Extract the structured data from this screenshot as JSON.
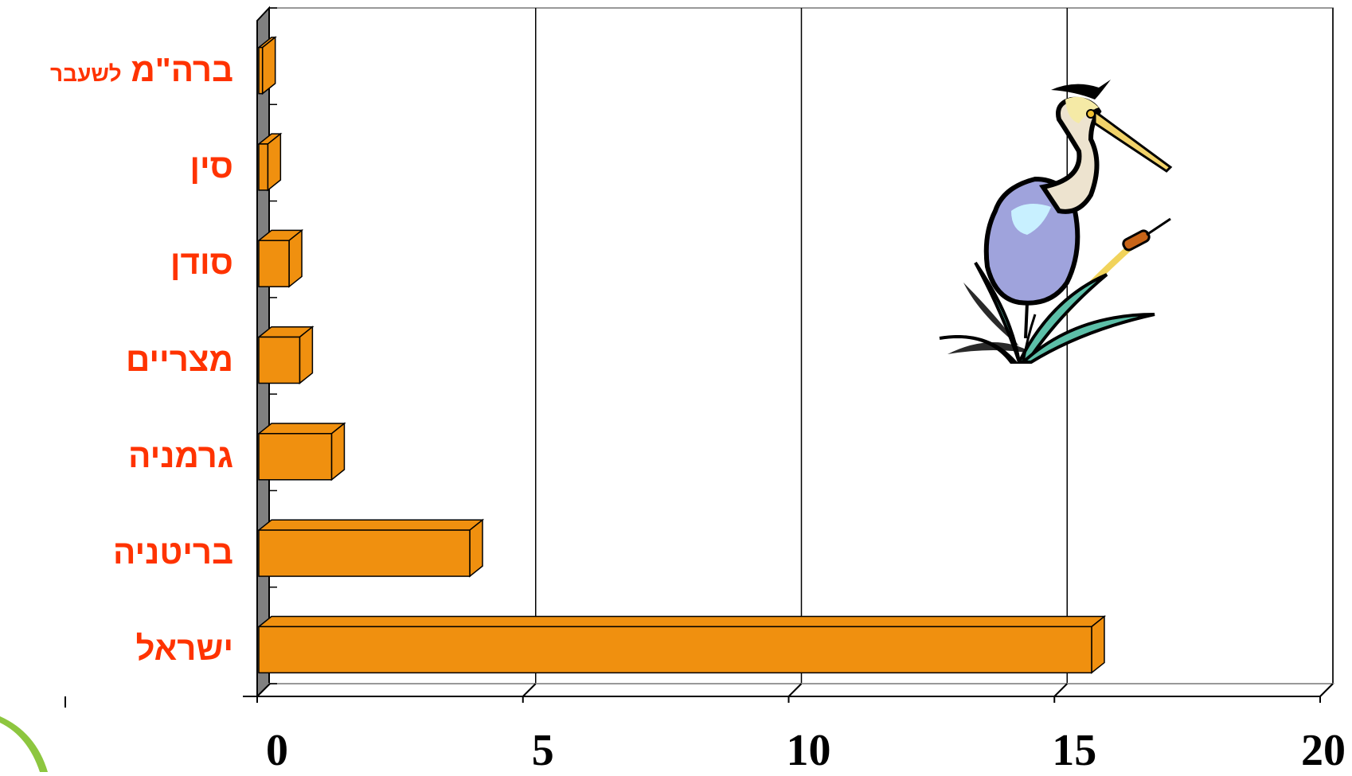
{
  "chart_data": {
    "type": "bar",
    "orientation": "horizontal",
    "three_d": true,
    "categories": [
      "ברה\"מ לשעבר",
      "סין",
      "סודן",
      "מצריים",
      "גרמניה",
      "בריטניה",
      "ישראל"
    ],
    "category_label_parts": [
      {
        "main": "ברה\"מ",
        "small": "לשעבר"
      },
      {
        "main": "סין",
        "small": ""
      },
      {
        "main": "סודן",
        "small": ""
      },
      {
        "main": "מצריים",
        "small": ""
      },
      {
        "main": "גרמניה",
        "small": ""
      },
      {
        "main": "בריטניה",
        "small": ""
      },
      {
        "main": "ישראל",
        "small": ""
      }
    ],
    "values": [
      0.1,
      0.2,
      0.6,
      0.8,
      1.4,
      4.0,
      15.7
    ],
    "xlim": [
      0,
      20
    ],
    "xticks": [
      "0",
      "5",
      "10",
      "15",
      "20"
    ],
    "title": "",
    "xlabel": "",
    "ylabel": "",
    "grid": "vertical",
    "bar_color": "#f0900f",
    "label_color": "#ff3300"
  },
  "decor": {
    "heron_icon": "heron-clipart",
    "swoosh_icon": "green-swoosh"
  }
}
